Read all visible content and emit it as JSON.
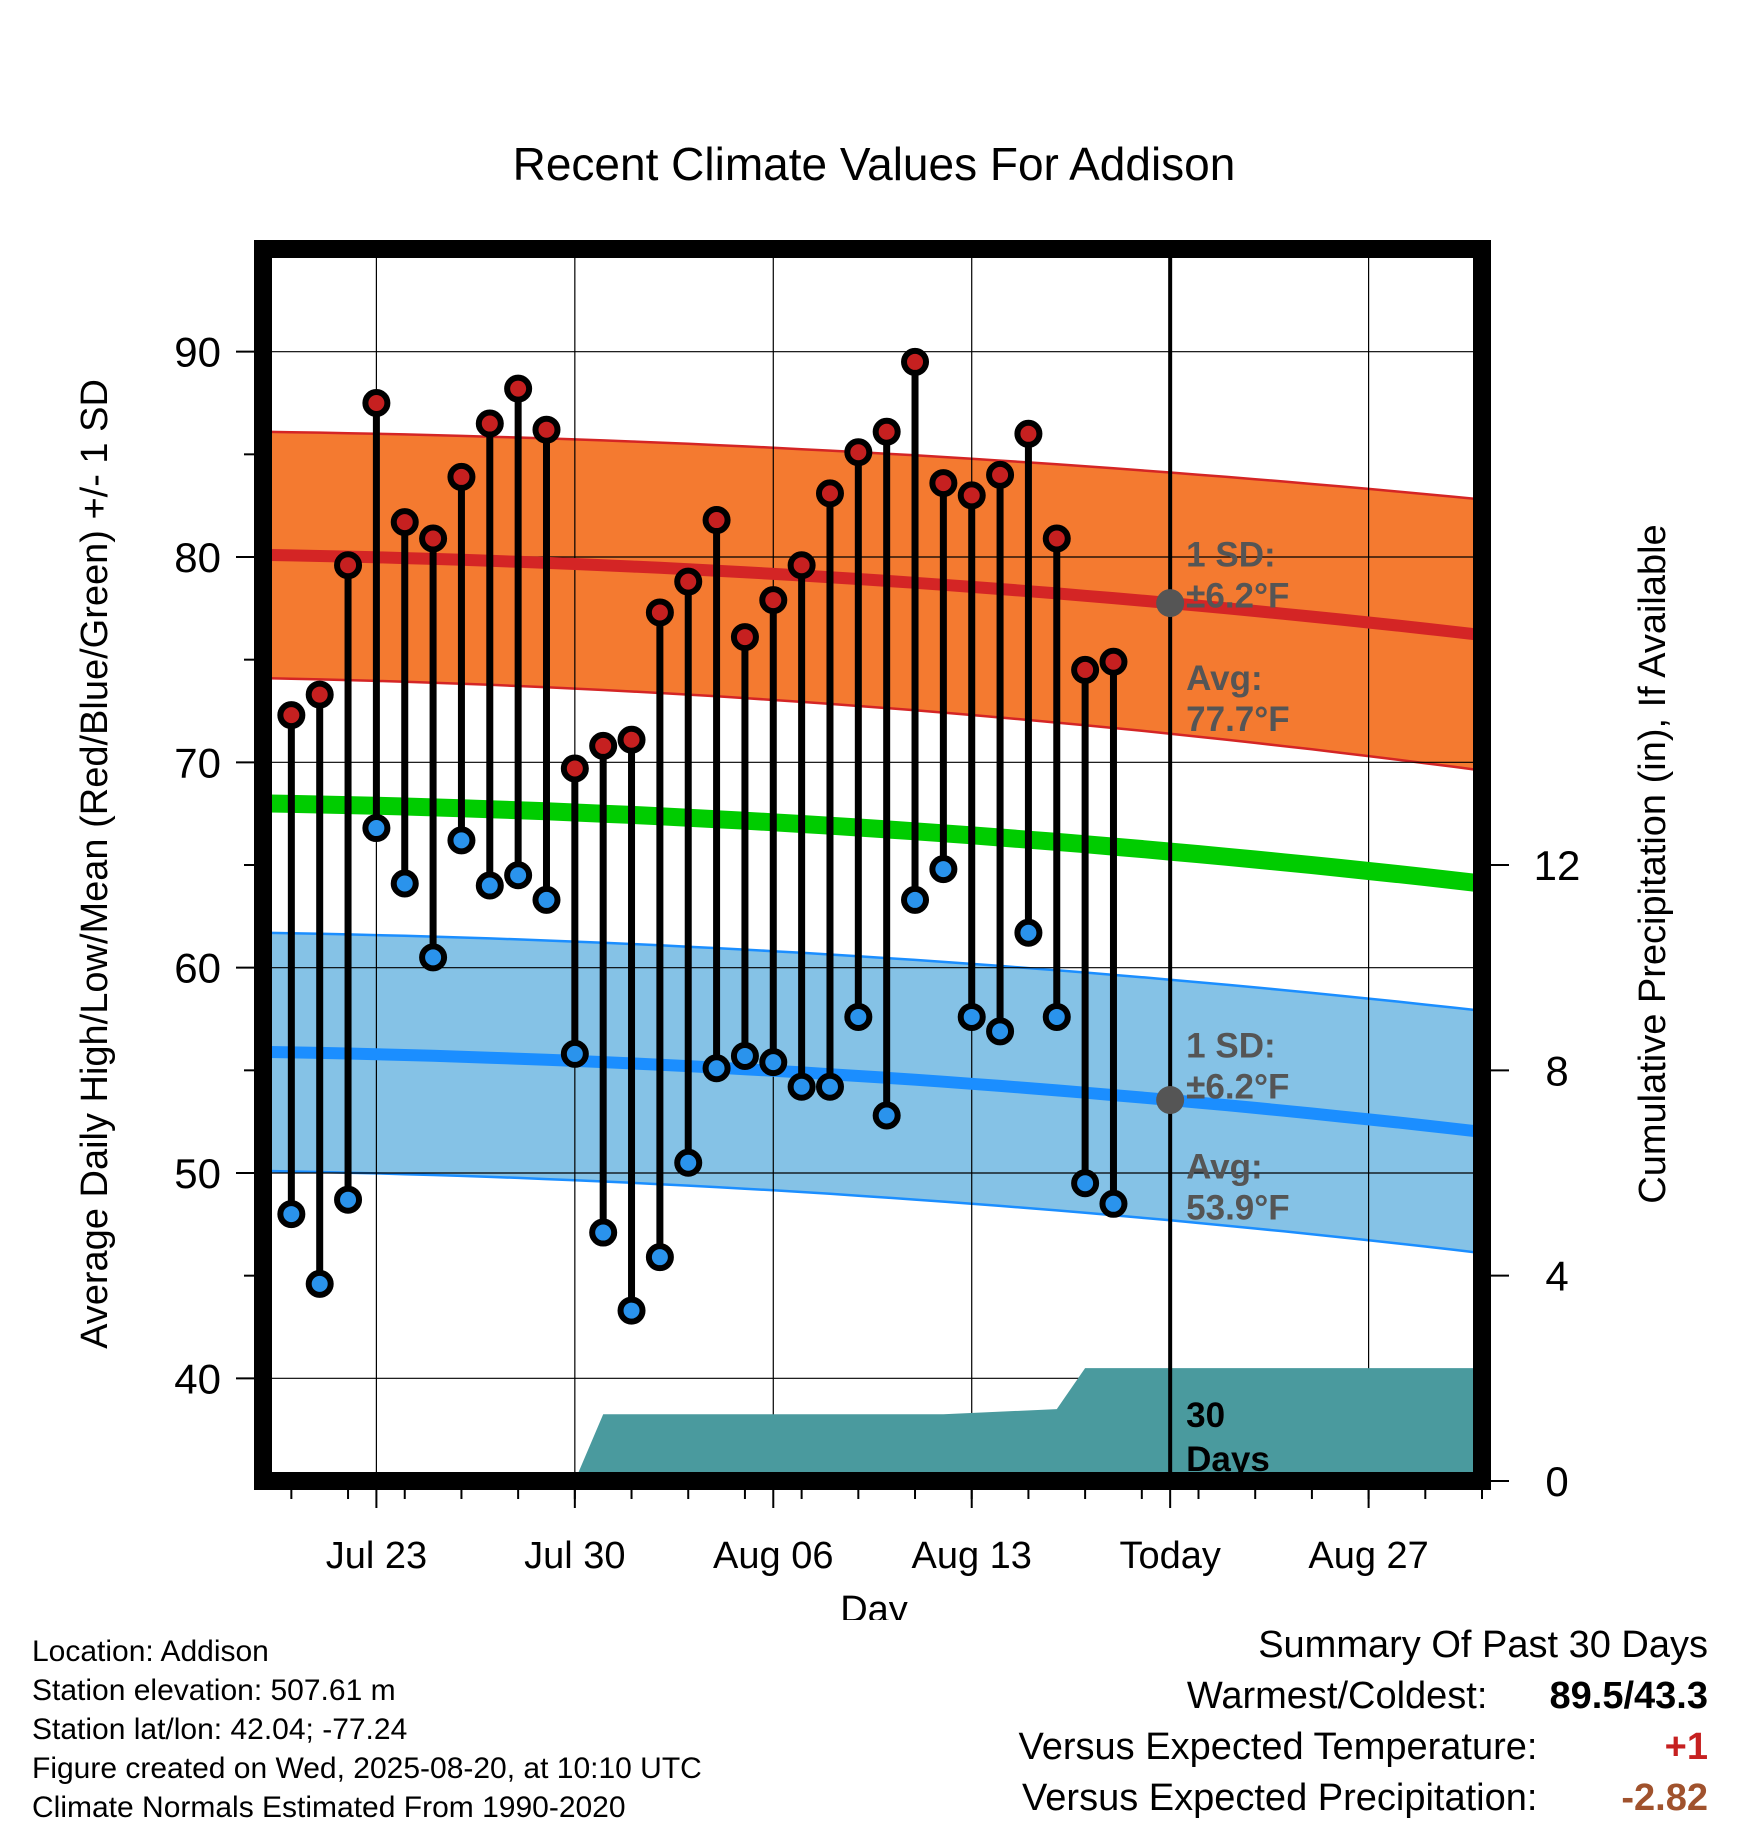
{
  "chart_data": {
    "type": "line",
    "title": "Recent Climate Values For Addison",
    "xlabel": "Day",
    "ylabel": "Average Daily High/Low/Mean (Red/Blue/Green) +/- 1 SD",
    "y2label": "Cumulative Precipitation (in), If Available",
    "ylim": [
      35,
      95
    ],
    "y2lim": [
      0,
      24
    ],
    "yticks": [
      40,
      50,
      60,
      70,
      80,
      90
    ],
    "y2ticks": [
      0,
      4,
      8,
      12
    ],
    "xlim": [
      "2025-07-19",
      "2025-08-31"
    ],
    "xticks": [
      {
        "date": "2025-07-23",
        "label": "Jul 23"
      },
      {
        "date": "2025-07-30",
        "label": "Jul 30"
      },
      {
        "date": "2025-08-06",
        "label": "Aug 06"
      },
      {
        "date": "2025-08-13",
        "label": "Aug 13"
      },
      {
        "date": "2025-08-20",
        "label": "Today"
      },
      {
        "date": "2025-08-27",
        "label": "Aug 27"
      }
    ],
    "grid": true,
    "today": "2025-08-20",
    "observations": {
      "dates": [
        "2025-07-20",
        "2025-07-21",
        "2025-07-22",
        "2025-07-23",
        "2025-07-24",
        "2025-07-25",
        "2025-07-26",
        "2025-07-27",
        "2025-07-28",
        "2025-07-29",
        "2025-07-30",
        "2025-07-31",
        "2025-08-01",
        "2025-08-02",
        "2025-08-03",
        "2025-08-04",
        "2025-08-05",
        "2025-08-06",
        "2025-08-07",
        "2025-08-08",
        "2025-08-09",
        "2025-08-10",
        "2025-08-11",
        "2025-08-12",
        "2025-08-13",
        "2025-08-14",
        "2025-08-15",
        "2025-08-16",
        "2025-08-17",
        "2025-08-18",
        "2025-08-19"
      ],
      "high": [
        72.3,
        73.3,
        79.6,
        87.5,
        81.7,
        80.9,
        83.9,
        86.5,
        88.2,
        86.2,
        69.7,
        70.8,
        71.1,
        77.3,
        78.8,
        81.8,
        76.1,
        77.9,
        79.6,
        83.1,
        85.1,
        86.1,
        89.5,
        83.6,
        83.0,
        84.0,
        86.0,
        80.9,
        74.5,
        74.9,
        null
      ],
      "low": [
        48.0,
        44.6,
        48.7,
        66.8,
        64.1,
        60.5,
        66.2,
        64.0,
        64.5,
        63.3,
        55.8,
        47.1,
        43.3,
        45.9,
        50.5,
        55.1,
        55.7,
        55.4,
        54.2,
        54.2,
        57.6,
        52.8,
        63.3,
        64.8,
        57.6,
        56.9,
        61.7,
        57.6,
        49.5,
        48.5,
        null
      ]
    },
    "normals": {
      "start_date": "2025-07-19",
      "end_date": "2025-08-31",
      "avg_high": [
        80.1,
        76.2
      ],
      "avg_mean": [
        68.0,
        64.1
      ],
      "avg_low": [
        55.9,
        52.0
      ],
      "sd_high": [
        6.0,
        6.6
      ],
      "sd_low": [
        5.8,
        5.9
      ]
    },
    "precipitation": {
      "dates": [
        "2025-07-30",
        "2025-07-31",
        "2025-08-12",
        "2025-08-16",
        "2025-08-17",
        "2025-08-31"
      ],
      "cumulative": [
        0,
        1.3,
        1.3,
        1.4,
        2.2,
        2.2
      ]
    },
    "annotations": {
      "high_sd": {
        "line1": "1 SD:",
        "line2": "±6.2°F"
      },
      "high_avg": {
        "line1": "Avg:",
        "line2": "77.7°F"
      },
      "low_sd": {
        "line1": "1 SD:",
        "line2": "±6.2°F"
      },
      "low_avg": {
        "line1": "Avg:",
        "line2": "53.9°F"
      },
      "days": {
        "line1": "30",
        "line2": "Days"
      }
    },
    "colors": {
      "high_band": "#f47a30",
      "high_line": "#d42525",
      "low_band": "#85c2e6",
      "low_line": "#1b8eff",
      "mean_line": "#00cc00",
      "precip": "#4a9a9e",
      "high_marker": "#c62020",
      "low_marker": "#2a93ec",
      "today_marker": "#555555",
      "annotation_text": "#555555"
    }
  },
  "info": {
    "location": "Location: Addison",
    "elevation": "Station elevation: 507.61 m",
    "latlon": "Station lat/lon: 42.04; -77.24",
    "created": "Figure created on Wed, 2025-08-20, at 10:10 UTC",
    "normals": "Climate Normals Estimated From 1990-2020"
  },
  "summary": {
    "title": "Summary Of Past 30 Days",
    "warmest_label": "Warmest/Coldest:",
    "warmest_value": "89.5/43.3",
    "temp_label": "Versus Expected Temperature:",
    "temp_value": "+1",
    "temp_color": "#c62020",
    "precip_label": "Versus Expected Precipitation:",
    "precip_value": "-2.82",
    "precip_color": "#a0522d"
  }
}
